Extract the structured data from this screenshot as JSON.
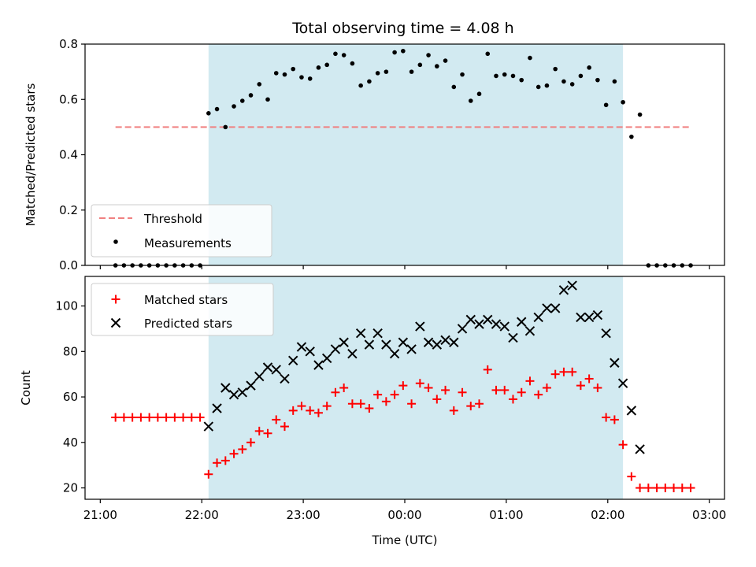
{
  "colors": {
    "shade": "#add8e6",
    "threshold": "#f08080",
    "measurement": "#000000",
    "matched": "#ff0000",
    "predicted": "#000000"
  },
  "chart_data": {
    "type": "scatter",
    "title": "Total observing time = 4.08 h",
    "x_tick_labels": [
      "21:00",
      "22:00",
      "23:00",
      "00:00",
      "01:00",
      "02:00",
      "03:00"
    ],
    "xlim": [
      "21:00",
      "03:00"
    ],
    "xlabel": "Time (UTC)",
    "observing_window": [
      "22:04",
      "02:09"
    ],
    "top": {
      "ylabel": "Matched/Predicted stars",
      "ylim": [
        0,
        0.8
      ],
      "y_ticks": [
        "0.0",
        "0.2",
        "0.4",
        "0.6",
        "0.8"
      ],
      "threshold": {
        "name": "Threshold",
        "value": 0.5,
        "x_range": [
          "21:09",
          "02:49"
        ]
      },
      "legend": {
        "position": "lower-left",
        "entries": [
          "Threshold",
          "Measurements"
        ]
      },
      "measurements": {
        "name": "Measurements",
        "x": [
          "21:09",
          "21:14",
          "21:19",
          "21:24",
          "21:29",
          "21:34",
          "21:39",
          "21:44",
          "21:49",
          "21:54",
          "21:59",
          "22:04",
          "22:09",
          "22:14",
          "22:19",
          "22:24",
          "22:29",
          "22:34",
          "22:39",
          "22:44",
          "22:49",
          "22:54",
          "22:59",
          "23:04",
          "23:09",
          "23:14",
          "23:19",
          "23:24",
          "23:29",
          "23:34",
          "23:39",
          "23:44",
          "23:49",
          "23:54",
          "23:59",
          "00:04",
          "00:09",
          "00:14",
          "00:19",
          "00:24",
          "00:29",
          "00:34",
          "00:39",
          "00:44",
          "00:49",
          "00:54",
          "00:59",
          "01:04",
          "01:09",
          "01:14",
          "01:19",
          "01:24",
          "01:29",
          "01:34",
          "01:39",
          "01:44",
          "01:49",
          "01:54",
          "01:59",
          "02:04",
          "02:09",
          "02:14",
          "02:19",
          "02:24",
          "02:29",
          "02:34",
          "02:39",
          "02:44",
          "02:49"
        ],
        "y": [
          0,
          0,
          0,
          0,
          0,
          0,
          0,
          0,
          0,
          0,
          0,
          0.55,
          0.565,
          0.5,
          0.575,
          0.595,
          0.615,
          0.655,
          0.6,
          0.695,
          0.69,
          0.71,
          0.68,
          0.675,
          0.715,
          0.725,
          0.765,
          0.76,
          0.73,
          0.65,
          0.665,
          0.695,
          0.7,
          0.77,
          0.775,
          0.7,
          0.725,
          0.76,
          0.72,
          0.74,
          0.645,
          0.69,
          0.595,
          0.62,
          0.765,
          0.685,
          0.69,
          0.685,
          0.67,
          0.75,
          0.645,
          0.65,
          0.71,
          0.665,
          0.655,
          0.685,
          0.715,
          0.67,
          0.58,
          0.665,
          0.59,
          0.465,
          0.545,
          0,
          0,
          0,
          0,
          0,
          0
        ]
      }
    },
    "bottom": {
      "ylabel": "Count",
      "ylim": [
        15,
        113
      ],
      "y_ticks": [
        "20",
        "40",
        "60",
        "80",
        "100"
      ],
      "legend": {
        "position": "upper-left",
        "entries": [
          "Matched stars",
          "Predicted stars"
        ]
      },
      "matched": {
        "name": "Matched stars",
        "x": [
          "21:09",
          "21:14",
          "21:19",
          "21:24",
          "21:29",
          "21:34",
          "21:39",
          "21:44",
          "21:49",
          "21:54",
          "21:59",
          "22:04",
          "22:09",
          "22:14",
          "22:19",
          "22:24",
          "22:29",
          "22:34",
          "22:39",
          "22:44",
          "22:49",
          "22:54",
          "22:59",
          "23:04",
          "23:09",
          "23:14",
          "23:19",
          "23:24",
          "23:29",
          "23:34",
          "23:39",
          "23:44",
          "23:49",
          "23:54",
          "23:59",
          "00:04",
          "00:09",
          "00:14",
          "00:19",
          "00:24",
          "00:29",
          "00:34",
          "00:39",
          "00:44",
          "00:49",
          "00:54",
          "00:59",
          "01:04",
          "01:09",
          "01:14",
          "01:19",
          "01:24",
          "01:29",
          "01:34",
          "01:39",
          "01:44",
          "01:49",
          "01:54",
          "01:59",
          "02:04",
          "02:09",
          "02:14",
          "02:19",
          "02:24",
          "02:29",
          "02:34",
          "02:39",
          "02:44",
          "02:49"
        ],
        "y": [
          51,
          51,
          51,
          51,
          51,
          51,
          51,
          51,
          51,
          51,
          51,
          26,
          31,
          32,
          35,
          37,
          40,
          45,
          44,
          50,
          47,
          54,
          56,
          54,
          53,
          56,
          62,
          64,
          57,
          57,
          55,
          61,
          58,
          61,
          65,
          57,
          66,
          64,
          59,
          63,
          54,
          62,
          56,
          57,
          72,
          63,
          63,
          59,
          62,
          67,
          61,
          64,
          70,
          71,
          71,
          65,
          68,
          64,
          51,
          50,
          39,
          25,
          20,
          20,
          20,
          20,
          20,
          20,
          20
        ]
      },
      "predicted": {
        "name": "Predicted stars",
        "x": [
          "22:04",
          "22:09",
          "22:14",
          "22:19",
          "22:24",
          "22:29",
          "22:34",
          "22:39",
          "22:44",
          "22:49",
          "22:54",
          "22:59",
          "23:04",
          "23:09",
          "23:14",
          "23:19",
          "23:24",
          "23:29",
          "23:34",
          "23:39",
          "23:44",
          "23:49",
          "23:54",
          "23:59",
          "00:04",
          "00:09",
          "00:14",
          "00:19",
          "00:24",
          "00:29",
          "00:34",
          "00:39",
          "00:44",
          "00:49",
          "00:54",
          "00:59",
          "01:04",
          "01:09",
          "01:14",
          "01:19",
          "01:24",
          "01:29",
          "01:34",
          "01:39",
          "01:44",
          "01:49",
          "01:54",
          "01:59",
          "02:04",
          "02:09",
          "02:14",
          "02:19"
        ],
        "y": [
          47,
          55,
          64,
          61,
          62,
          65,
          69,
          73,
          72,
          68,
          76,
          82,
          80,
          74,
          77,
          81,
          84,
          79,
          88,
          83,
          88,
          83,
          79,
          84,
          81,
          91,
          84,
          83,
          85,
          84,
          90,
          94,
          92,
          94,
          92,
          91,
          86,
          93,
          89,
          95,
          99,
          99,
          107,
          109,
          95,
          95,
          96,
          88,
          75,
          66,
          54,
          37
        ]
      }
    }
  }
}
